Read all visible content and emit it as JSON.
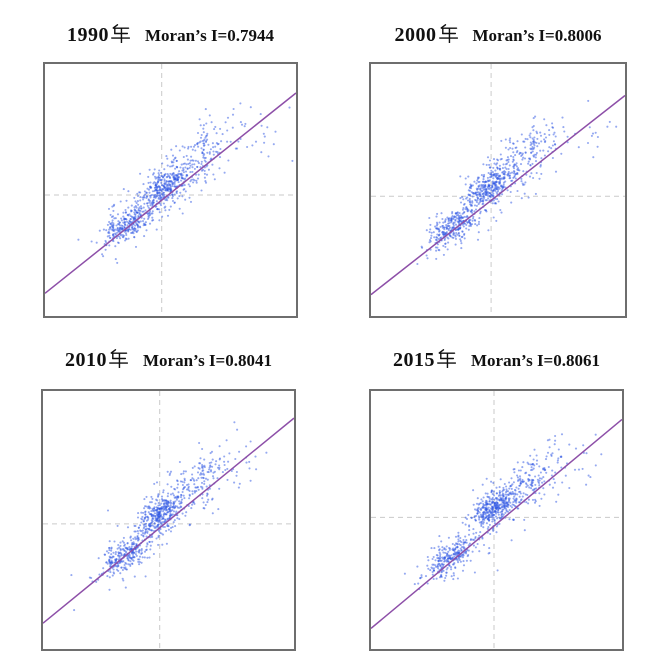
{
  "figure": {
    "background": "#ffffff",
    "layout_note": "2x2 grid of Moran scatter plots, no axis ticks or axis labels visible"
  },
  "chart_data": {
    "type": "scatter",
    "title": "",
    "xlabel": "",
    "ylabel": "",
    "tick_labels": "none",
    "legend": "none",
    "grid": "dashed crosshair (mean lines) in each panel",
    "style": {
      "point_color": "#2e55e4",
      "point_opacity": 0.5,
      "point_radius": 1.05,
      "line_color": "#8d4fa8",
      "line_width": 1.5,
      "grid_color": "#cacaca",
      "grid_dash": "5 4",
      "border_color": "#6e6e6e",
      "title_color": "#111111"
    },
    "panels": [
      {
        "title": "1990年  Moran’s I=0.7944",
        "year": "1990",
        "year_suffix": "年",
        "moran_label": "Moran’s I=0.7944",
        "moran_i": 0.7944,
        "seed": 1990,
        "crosshair": {
          "x_frac": 0.465,
          "y_frac": 0.52
        },
        "trend": {
          "x1_frac": 0,
          "y1_frac": 0.91,
          "x2_frac": 1,
          "y2_frac": 0.115
        },
        "clusters": [
          {
            "cx": 0.335,
            "cy": 0.635,
            "sx": 0.052,
            "sy": 0.04,
            "n": 260,
            "rho": 0.62
          },
          {
            "cx": 0.475,
            "cy": 0.49,
            "sx": 0.05,
            "sy": 0.042,
            "n": 300,
            "rho": 0.6
          },
          {
            "cx": 0.575,
            "cy": 0.39,
            "sx": 0.1,
            "sy": 0.08,
            "n": 185,
            "rho": 0.72
          },
          {
            "cx": 0.49,
            "cy": 0.51,
            "sx": 0.165,
            "sy": 0.135,
            "n": 80,
            "rho": 0.85
          },
          {
            "cx": 0.85,
            "cy": 0.3,
            "sx": 0.055,
            "sy": 0.055,
            "n": 12,
            "rho": 0.2
          },
          {
            "cx": 0.63,
            "cy": 0.31,
            "sx": 0.006,
            "sy": 0.05,
            "n": 20,
            "rho": 0
          },
          {
            "cx": 0.272,
            "cy": 0.655,
            "sx": 0.005,
            "sy": 0.042,
            "n": 16,
            "rho": 0
          }
        ]
      },
      {
        "title": "2000年  Moran’s I=0.8006",
        "year": "2000",
        "year_suffix": "年",
        "moran_label": "Moran’s I=0.8006",
        "moran_i": 0.8006,
        "seed": 2000,
        "crosshair": {
          "x_frac": 0.473,
          "y_frac": 0.525
        },
        "trend": {
          "x1_frac": 0,
          "y1_frac": 0.915,
          "x2_frac": 1,
          "y2_frac": 0.125
        },
        "clusters": [
          {
            "cx": 0.33,
            "cy": 0.645,
            "sx": 0.05,
            "sy": 0.04,
            "n": 280,
            "rho": 0.62
          },
          {
            "cx": 0.47,
            "cy": 0.485,
            "sx": 0.048,
            "sy": 0.04,
            "n": 300,
            "rho": 0.6
          },
          {
            "cx": 0.58,
            "cy": 0.38,
            "sx": 0.098,
            "sy": 0.078,
            "n": 180,
            "rho": 0.72
          },
          {
            "cx": 0.49,
            "cy": 0.515,
            "sx": 0.16,
            "sy": 0.135,
            "n": 75,
            "rho": 0.85
          },
          {
            "cx": 0.86,
            "cy": 0.3,
            "sx": 0.05,
            "sy": 0.05,
            "n": 10,
            "rho": 0.2
          },
          {
            "cx": 0.64,
            "cy": 0.3,
            "sx": 0.006,
            "sy": 0.05,
            "n": 18,
            "rho": 0
          },
          {
            "cx": 0.262,
            "cy": 0.66,
            "sx": 0.005,
            "sy": 0.04,
            "n": 14,
            "rho": 0
          }
        ]
      },
      {
        "title": "2010年  Moran’s I=0.8041",
        "year": "2010",
        "year_suffix": "年",
        "moran_label": "Moran’s I=0.8041",
        "moran_i": 0.8041,
        "seed": 2010,
        "crosshair": {
          "x_frac": 0.465,
          "y_frac": 0.515
        },
        "trend": {
          "x1_frac": 0,
          "y1_frac": 0.9,
          "x2_frac": 1,
          "y2_frac": 0.105
        },
        "clusters": [
          {
            "cx": 0.33,
            "cy": 0.64,
            "sx": 0.05,
            "sy": 0.04,
            "n": 255,
            "rho": 0.62
          },
          {
            "cx": 0.465,
            "cy": 0.48,
            "sx": 0.046,
            "sy": 0.04,
            "n": 310,
            "rho": 0.6
          },
          {
            "cx": 0.585,
            "cy": 0.375,
            "sx": 0.1,
            "sy": 0.08,
            "n": 185,
            "rho": 0.72
          },
          {
            "cx": 0.49,
            "cy": 0.51,
            "sx": 0.165,
            "sy": 0.135,
            "n": 75,
            "rho": 0.85
          },
          {
            "cx": 0.85,
            "cy": 0.31,
            "sx": 0.055,
            "sy": 0.05,
            "n": 10,
            "rho": 0.2
          },
          {
            "cx": 0.63,
            "cy": 0.305,
            "sx": 0.006,
            "sy": 0.05,
            "n": 18,
            "rho": 0
          },
          {
            "cx": 0.265,
            "cy": 0.645,
            "sx": 0.005,
            "sy": 0.042,
            "n": 14,
            "rho": 0
          }
        ]
      },
      {
        "title": "2015年  Moran’s I=0.8061",
        "year": "2015",
        "year_suffix": "年",
        "moran_label": "Moran’s I=0.8061",
        "moran_i": 0.8061,
        "seed": 2015,
        "crosshair": {
          "x_frac": 0.49,
          "y_frac": 0.49
        },
        "trend": {
          "x1_frac": 0,
          "y1_frac": 0.92,
          "x2_frac": 1,
          "y2_frac": 0.11
        },
        "clusters": [
          {
            "cx": 0.325,
            "cy": 0.645,
            "sx": 0.05,
            "sy": 0.04,
            "n": 250,
            "rho": 0.62
          },
          {
            "cx": 0.49,
            "cy": 0.45,
            "sx": 0.044,
            "sy": 0.038,
            "n": 330,
            "rho": 0.6
          },
          {
            "cx": 0.6,
            "cy": 0.37,
            "sx": 0.098,
            "sy": 0.08,
            "n": 190,
            "rho": 0.72
          },
          {
            "cx": 0.5,
            "cy": 0.5,
            "sx": 0.16,
            "sy": 0.135,
            "n": 75,
            "rho": 0.85
          },
          {
            "cx": 0.86,
            "cy": 0.295,
            "sx": 0.05,
            "sy": 0.05,
            "n": 10,
            "rho": 0.2
          },
          {
            "cx": 0.645,
            "cy": 0.3,
            "sx": 0.006,
            "sy": 0.05,
            "n": 18,
            "rho": 0
          },
          {
            "cx": 0.268,
            "cy": 0.655,
            "sx": 0.005,
            "sy": 0.042,
            "n": 14,
            "rho": 0
          }
        ]
      }
    ]
  }
}
